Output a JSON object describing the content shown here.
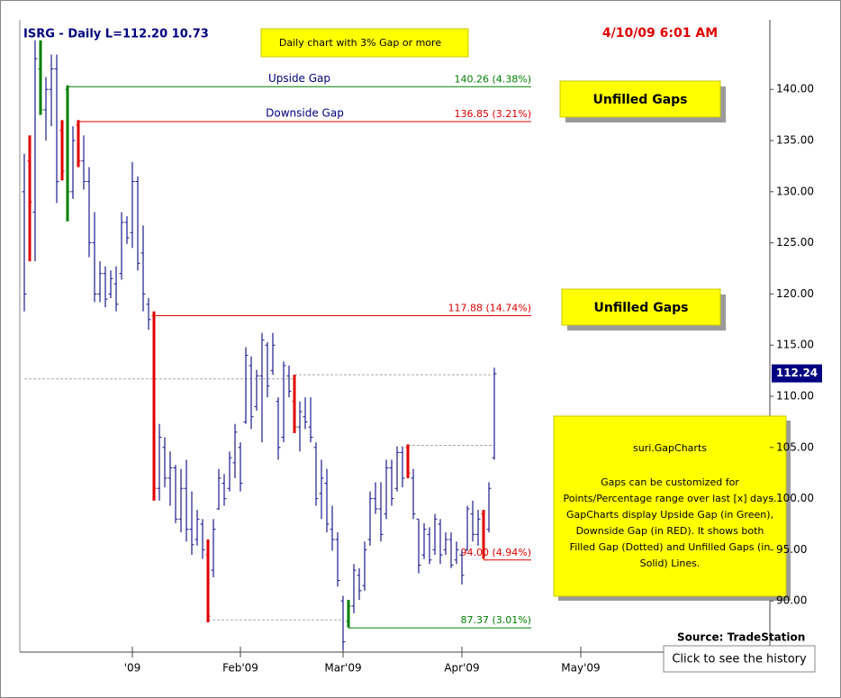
{
  "chart_data": {
    "type": "ohlc",
    "title": "ISRG - Daily  L=112.20  10.73",
    "timestamp": "4/10/09 6:01 AM",
    "subtitle": "Daily chart with 3% Gap or more",
    "bar_color": "#1a1a8c",
    "categories": [
      null,
      null,
      null,
      null,
      null,
      null,
      null,
      null,
      null,
      null,
      null,
      null,
      null,
      null,
      null,
      null,
      null,
      null,
      null,
      null,
      "'09",
      null,
      null,
      null,
      null,
      null,
      null,
      null,
      null,
      null,
      null,
      null,
      null,
      null,
      null,
      null,
      null,
      null,
      null,
      null,
      "Feb'09",
      null,
      null,
      null,
      null,
      null,
      null,
      null,
      null,
      null,
      null,
      null,
      null,
      null,
      null,
      null,
      null,
      null,
      null,
      "Mar'09",
      null,
      null,
      null,
      null,
      null,
      null,
      null,
      null,
      null,
      null,
      null,
      null,
      null,
      null,
      null,
      null,
      null,
      null,
      null,
      null,
      null,
      "Apr'09",
      null,
      null,
      null,
      null,
      null,
      null,
      null,
      null,
      null,
      null,
      null,
      null,
      null,
      null,
      null,
      null,
      null,
      null,
      null,
      null,
      null,
      "May'09"
    ],
    "high": [
      133.7,
      135.5,
      144.8,
      144.8,
      141.2,
      143.4,
      143.4,
      137,
      140.4,
      136.4,
      137,
      135.5,
      132.4,
      128,
      123.2,
      122.7,
      122.3,
      122.7,
      128,
      127.6,
      132.9,
      131.5,
      126.7,
      119.6,
      118.3,
      107.3,
      106,
      104.6,
      103.3,
      102.9,
      103.8,
      100.7,
      98.9,
      98,
      96,
      98,
      102.9,
      102.4,
      104.6,
      107.3,
      105.5,
      114.8,
      113.9,
      112.6,
      116.2,
      115.3,
      116.2,
      109.9,
      113.4,
      113,
      112.1,
      109.5,
      109.9,
      109.9,
      105.5,
      103.8,
      102.9,
      99.3,
      96.7,
      90.5,
      90.1,
      93.6,
      93.2,
      95.8,
      100.7,
      101.6,
      101.6,
      103.8,
      103.8,
      105.1,
      105.1,
      105.3,
      102.9,
      98,
      97.6,
      97.2,
      98.5,
      98,
      96.7,
      96.7,
      95.8,
      94.9,
      99.3,
      99.8,
      98.9,
      98.9,
      101.6,
      112.8,
      null,
      null,
      null,
      null,
      null,
      null,
      null,
      null,
      null,
      null,
      null,
      null,
      null,
      null,
      null,
      null
    ],
    "low": [
      118.3,
      123.2,
      123.2,
      137.5,
      135,
      136.4,
      128.9,
      131.1,
      127.1,
      129.3,
      132.4,
      130.2,
      123.6,
      119.2,
      119.2,
      118.7,
      119.6,
      118.3,
      121.4,
      124.9,
      124.5,
      122.3,
      118.3,
      116.5,
      99.8,
      99.8,
      101.1,
      99.3,
      97.6,
      96.7,
      95.8,
      94.5,
      95.4,
      94.1,
      87.9,
      92.3,
      98.9,
      99.3,
      100.7,
      102,
      100.7,
      107.3,
      106.8,
      108.6,
      105.5,
      109.9,
      112.1,
      103.8,
      105.5,
      109.9,
      106.4,
      104.6,
      106.8,
      105.5,
      99.3,
      98,
      96.7,
      94.9,
      91.4,
      85.2,
      87.4,
      88.8,
      90.1,
      91,
      95.4,
      98.5,
      95.8,
      98,
      99.3,
      100.7,
      101.1,
      102,
      98,
      92.7,
      94.1,
      93.6,
      94.5,
      93.6,
      94.5,
      93.2,
      93.6,
      91.6,
      94.9,
      95.8,
      95.4,
      94.1,
      96.7,
      103.8,
      null,
      null,
      null,
      null,
      null,
      null,
      null,
      null,
      null,
      null,
      null,
      null,
      null,
      null,
      null,
      null
    ],
    "open": [
      130,
      133,
      128,
      142,
      138,
      140,
      142,
      136,
      140,
      130,
      136.5,
      133,
      131,
      125,
      120,
      122,
      120,
      121,
      122,
      127,
      126,
      131,
      124,
      119,
      117.9,
      101,
      105,
      102,
      103,
      98,
      101,
      97,
      96,
      97.5,
      94.5,
      93,
      99,
      101.5,
      101,
      103.5,
      105,
      107.5,
      113,
      109,
      112,
      115,
      112.5,
      109.5,
      106,
      112,
      109.5,
      107,
      108,
      107,
      105,
      100.5,
      101.5,
      97,
      96,
      90,
      88,
      89.5,
      92.5,
      91.5,
      96,
      100,
      99,
      98.5,
      103,
      101,
      104.5,
      105,
      102,
      98,
      94.5,
      96.5,
      95,
      97.5,
      95,
      96,
      94,
      94.5,
      95,
      98.5,
      96.5,
      98.5,
      97,
      104,
      null,
      null,
      null,
      null,
      null,
      null,
      null,
      null,
      null,
      null,
      null,
      null,
      null,
      null,
      null,
      null
    ],
    "close": [
      120,
      129,
      143,
      138,
      140,
      142,
      131,
      132,
      130,
      135,
      133,
      131,
      125,
      120,
      122,
      119.5,
      121.5,
      119,
      127,
      125.5,
      131,
      123,
      120,
      117.5,
      101,
      106,
      102,
      103,
      98,
      101,
      97,
      95.5,
      98,
      95,
      88.5,
      97,
      102,
      100,
      104,
      106.5,
      101.5,
      114,
      108,
      112,
      115.5,
      111,
      115,
      105,
      113,
      110.5,
      107,
      108.5,
      107.5,
      106,
      100,
      102,
      97.5,
      96,
      92,
      86,
      89.5,
      93,
      91,
      95,
      100,
      99,
      96.5,
      103,
      100,
      104.5,
      102,
      102.5,
      98.5,
      93.5,
      97,
      94,
      98,
      94.5,
      96,
      93.5,
      95,
      92.5,
      99,
      96.5,
      98,
      94.5,
      101,
      112.2,
      null,
      null,
      null,
      null,
      null,
      null,
      null,
      null,
      null,
      null,
      null,
      null,
      null,
      null,
      null,
      null
    ],
    "highlight": [
      {
        "bar": 1,
        "color": "#e00000"
      },
      {
        "bar": 3,
        "color": "#008000"
      },
      {
        "bar": 7,
        "color": "#e00000"
      },
      {
        "bar": 8,
        "color": "#008000"
      },
      {
        "bar": 10,
        "color": "#e00000"
      },
      {
        "bar": 24,
        "color": "#e00000"
      },
      {
        "bar": 34,
        "color": "#e00000"
      },
      {
        "bar": 50,
        "color": "#e00000"
      },
      {
        "bar": 60,
        "color": "#008000"
      },
      {
        "bar": 71,
        "color": "#e00000"
      },
      {
        "bar": 85,
        "color": "#e00000"
      }
    ],
    "gaps": [
      {
        "name": "Upside Gap",
        "start": 8,
        "level": 140.26,
        "label": "140.26 (4.38%)",
        "color": "#008000",
        "style": "solid"
      },
      {
        "name": "Downside Gap",
        "start": 10,
        "level": 136.85,
        "label": "136.85 (3.21%)",
        "color": "#e00000",
        "style": "solid"
      },
      {
        "start": 24,
        "level": 117.88,
        "label": "117.88 (14.74%)",
        "color": "#e00000",
        "style": "solid"
      },
      {
        "start": 34,
        "end": 59,
        "level": 88.15,
        "color": "#aaaaaa",
        "style": "dotted"
      },
      {
        "start": 60,
        "level": 87.37,
        "label": "87.37 (3.01%)",
        "color": "#008000",
        "style": "solid"
      },
      {
        "start": 85,
        "level": 94,
        "label": "94.00 (4.94%)",
        "color": "#e00000",
        "style": "solid"
      },
      {
        "start": 0,
        "end": 50,
        "level": 111.7,
        "color": "#aaaaaa",
        "style": "dotted"
      },
      {
        "start": 50,
        "end": 87,
        "level": 112.1,
        "color": "#aaaaaa",
        "style": "dotted"
      },
      {
        "start": 71,
        "end": 87,
        "level": 105.2,
        "color": "#aaaaaa",
        "style": "dotted"
      }
    ],
    "last_price": 112.24,
    "ylim": [
      85,
      146.8
    ],
    "yticks": [
      {
        "value": 90,
        "label": "90.00"
      },
      {
        "value": 95,
        "label": "95.00"
      },
      {
        "value": 100,
        "label": "100.00"
      },
      {
        "value": 105,
        "label": "105.00"
      },
      {
        "value": 110,
        "label": "110.00"
      },
      {
        "value": 115,
        "label": "115.00"
      },
      {
        "value": 120,
        "label": "120.00"
      },
      {
        "value": 125,
        "label": "125.00"
      },
      {
        "value": 130,
        "label": "130.00"
      },
      {
        "value": 135,
        "label": "135.00"
      },
      {
        "value": 140,
        "label": "140.00"
      }
    ],
    "annotations": [
      "Unfilled Gaps",
      "Unfilled Gaps"
    ],
    "note": {
      "title": "suri.GapCharts",
      "lines": [
        "Gaps can be customized for",
        "Points/Percentage range over last [x] days.",
        "GapCharts display Upside Gap (in Green),",
        "Downside Gap (in RED). It shows both",
        "Filled Gap (Dotted) and Unfilled Gaps (in",
        "Solid) Lines."
      ]
    },
    "source": "Source: TradeStation",
    "button": "Click to see the history"
  }
}
